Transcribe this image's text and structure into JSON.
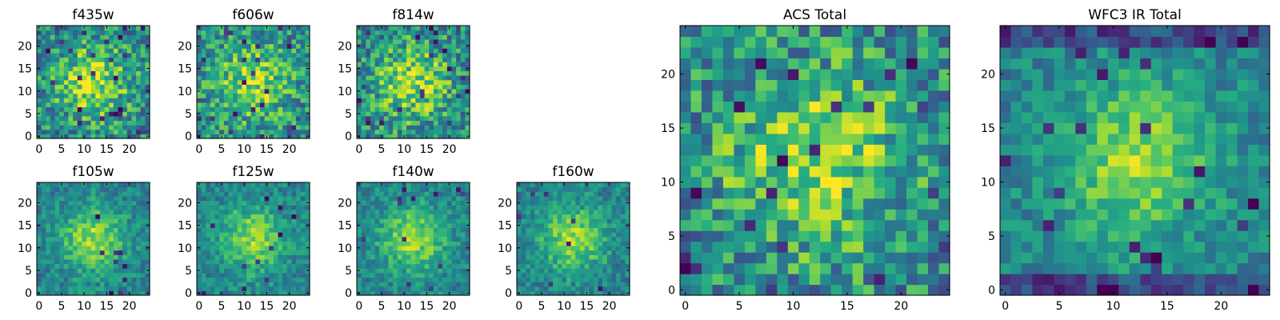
{
  "chart_data": [
    {
      "type": "heatmap",
      "title": "f435w",
      "xticks": [
        0,
        5,
        10,
        15,
        20
      ],
      "yticks": [
        0,
        5,
        10,
        15,
        20
      ],
      "xlim": [
        -0.5,
        24.5
      ],
      "ylim": [
        -0.5,
        24.5
      ],
      "grid_size": 25,
      "colormap": "viridis",
      "colorbar": false
    },
    {
      "type": "heatmap",
      "title": "f606w",
      "xticks": [
        0,
        5,
        10,
        15,
        20
      ],
      "yticks": [
        0,
        5,
        10,
        15,
        20
      ],
      "xlim": [
        -0.5,
        24.5
      ],
      "ylim": [
        -0.5,
        24.5
      ],
      "grid_size": 25,
      "colormap": "viridis",
      "colorbar": false
    },
    {
      "type": "heatmap",
      "title": "f814w",
      "xticks": [
        0,
        5,
        10,
        15,
        20
      ],
      "yticks": [
        0,
        5,
        10,
        15,
        20
      ],
      "xlim": [
        -0.5,
        24.5
      ],
      "ylim": [
        -0.5,
        24.5
      ],
      "grid_size": 25,
      "colormap": "viridis",
      "colorbar": false
    },
    {
      "type": "heatmap",
      "title": "f105w",
      "xticks": [
        0,
        5,
        10,
        15,
        20
      ],
      "yticks": [
        0,
        5,
        10,
        15,
        20
      ],
      "xlim": [
        -0.5,
        24.5
      ],
      "ylim": [
        -0.5,
        24.5
      ],
      "grid_size": 25,
      "colormap": "viridis",
      "colorbar": false
    },
    {
      "type": "heatmap",
      "title": "f125w",
      "xticks": [
        0,
        5,
        10,
        15,
        20
      ],
      "yticks": [
        0,
        5,
        10,
        15,
        20
      ],
      "xlim": [
        -0.5,
        24.5
      ],
      "ylim": [
        -0.5,
        24.5
      ],
      "grid_size": 25,
      "colormap": "viridis",
      "colorbar": false
    },
    {
      "type": "heatmap",
      "title": "f140w",
      "xticks": [
        0,
        5,
        10,
        15,
        20
      ],
      "yticks": [
        0,
        5,
        10,
        15,
        20
      ],
      "xlim": [
        -0.5,
        24.5
      ],
      "ylim": [
        -0.5,
        24.5
      ],
      "grid_size": 25,
      "colormap": "viridis",
      "colorbar": false
    },
    {
      "type": "heatmap",
      "title": "f160w",
      "xticks": [
        0,
        5,
        10,
        15,
        20
      ],
      "yticks": [
        0,
        5,
        10,
        15,
        20
      ],
      "xlim": [
        -0.5,
        24.5
      ],
      "ylim": [
        -0.5,
        24.5
      ],
      "grid_size": 25,
      "colormap": "viridis",
      "colorbar": false
    },
    {
      "type": "heatmap",
      "title": "ACS Total",
      "xticks": [
        0,
        5,
        10,
        15,
        20
      ],
      "yticks": [
        0,
        5,
        10,
        15,
        20
      ],
      "xlim": [
        -0.5,
        24.5
      ],
      "ylim": [
        -0.5,
        24.5
      ],
      "grid_size": 25,
      "colormap": "viridis",
      "colorbar": false
    },
    {
      "type": "heatmap",
      "title": "WFC3 IR Total",
      "xticks": [
        0,
        5,
        10,
        15,
        20
      ],
      "yticks": [
        0,
        5,
        10,
        15,
        20
      ],
      "xlim": [
        -0.5,
        24.5
      ],
      "ylim": [
        -0.5,
        24.5
      ],
      "grid_size": 25,
      "colormap": "viridis",
      "colorbar": false
    }
  ]
}
